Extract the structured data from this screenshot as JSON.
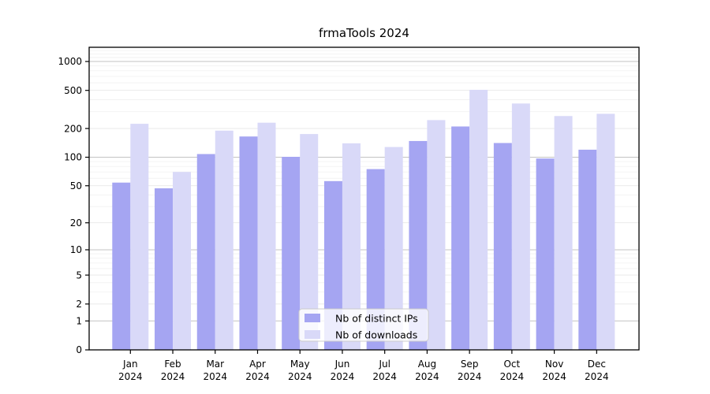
{
  "chart_data": {
    "type": "bar",
    "title": "frmaTools 2024",
    "x_labels": [
      {
        "month": "Jan",
        "year": "2024"
      },
      {
        "month": "Feb",
        "year": "2024"
      },
      {
        "month": "Mar",
        "year": "2024"
      },
      {
        "month": "Apr",
        "year": "2024"
      },
      {
        "month": "May",
        "year": "2024"
      },
      {
        "month": "Jun",
        "year": "2024"
      },
      {
        "month": "Jul",
        "year": "2024"
      },
      {
        "month": "Aug",
        "year": "2024"
      },
      {
        "month": "Sep",
        "year": "2024"
      },
      {
        "month": "Oct",
        "year": "2024"
      },
      {
        "month": "Nov",
        "year": "2024"
      },
      {
        "month": "Dec",
        "year": "2024"
      }
    ],
    "series": [
      {
        "name": "Nb of distinct IPs",
        "color": "#a5a5f2",
        "values": [
          54,
          47,
          108,
          165,
          101,
          56,
          75,
          148,
          210,
          141,
          97,
          120
        ]
      },
      {
        "name": "Nb of downloads",
        "color": "#d9d9f8",
        "values": [
          224,
          70,
          190,
          230,
          175,
          140,
          128,
          245,
          507,
          365,
          270,
          285
        ]
      }
    ],
    "y_scale": "log1p",
    "ylim": [
      0,
      1400
    ],
    "y_ticks": [
      {
        "v": 0,
        "label": "0"
      },
      {
        "v": 1,
        "label": "1"
      },
      {
        "v": 2,
        "label": "2"
      },
      {
        "v": 5,
        "label": "5"
      },
      {
        "v": 10,
        "label": "10"
      },
      {
        "v": 20,
        "label": "20"
      },
      {
        "v": 50,
        "label": "50"
      },
      {
        "v": 100,
        "label": "100"
      },
      {
        "v": 200,
        "label": "200"
      },
      {
        "v": 500,
        "label": "500"
      },
      {
        "v": 1000,
        "label": "1000"
      }
    ],
    "grid": true,
    "grid_major_values": [
      1,
      10,
      100,
      1000
    ],
    "grid_minor_values": [
      3,
      4,
      6,
      7,
      8,
      9,
      30,
      40,
      60,
      70,
      80,
      90,
      300,
      400,
      600,
      700,
      800,
      900,
      1100,
      1200,
      1300,
      1400
    ],
    "legend_position": "lower center",
    "colors": {
      "grid_major": "#c3c3c3",
      "grid_labeled": "#e7e7e7",
      "grid_minor": "#f2f2f2",
      "axis": "#000000",
      "text": "#000000",
      "legend_border": "#cccccc"
    }
  }
}
